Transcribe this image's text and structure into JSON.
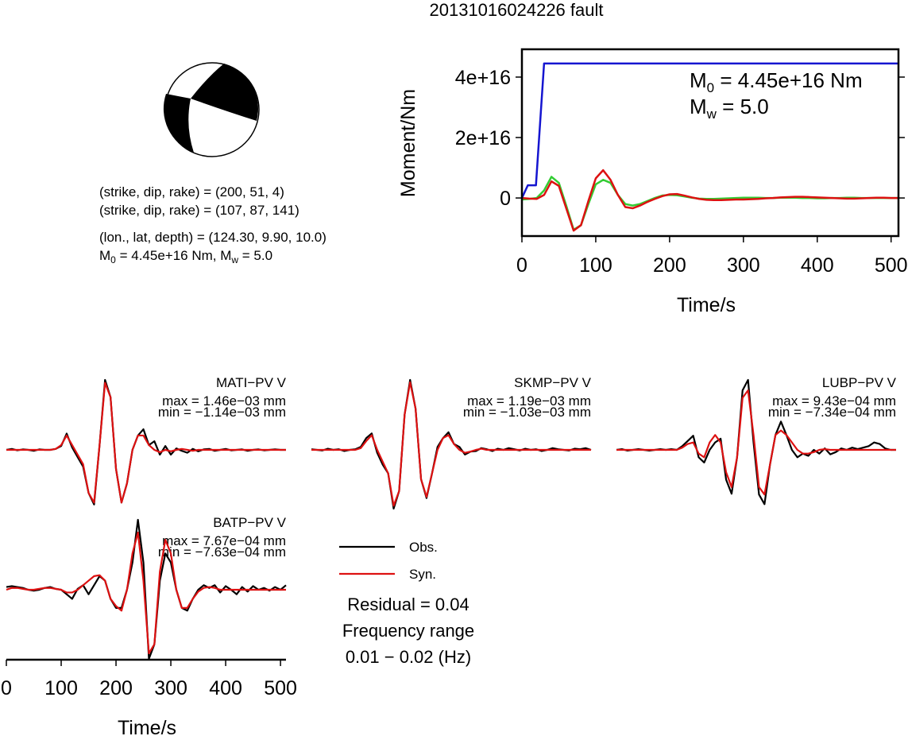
{
  "title": "20131016024226 fault",
  "mechanism": {
    "lines": [
      "(strike, dip, rake) = (200, 51, 4)",
      "(strike, dip, rake) = (107, 87, 141)",
      "(lon., lat, depth) = (124.30, 9.90, 10.0)"
    ],
    "moment_line": [
      "M",
      "0",
      " = 4.45e+16 Nm, M",
      "w",
      " = 5.0"
    ]
  },
  "chart_data": [
    {
      "type": "line",
      "xlabel": "Time/s",
      "ylabel": "Moment/Nm",
      "xlim": [
        0,
        510
      ],
      "ylim": [
        -1.26e+16,
        4.92e+16
      ],
      "xticks": [
        0,
        100,
        200,
        300,
        400,
        500
      ],
      "yticks": [
        0,
        {
          "value": 2e+16,
          "label": "2e+16"
        },
        {
          "value": 4e+16,
          "label": "4e+16"
        }
      ],
      "x": [
        0,
        10,
        20,
        30,
        40,
        50,
        60,
        70,
        80,
        90,
        100,
        110,
        120,
        130,
        140,
        150,
        160,
        170,
        180,
        190,
        200,
        210,
        220,
        230,
        240,
        250,
        260,
        270,
        280,
        290,
        300,
        310,
        320,
        330,
        340,
        350,
        360,
        370,
        380,
        390,
        400,
        410,
        420,
        430,
        440,
        450,
        460,
        470,
        480,
        490,
        500,
        510
      ],
      "series": [
        {
          "color": "#1515d0",
          "x": [
            0,
            8,
            19,
            30,
            510
          ],
          "values": [
            0,
            4200000000000000.0,
            4200000000000000.0,
            4.45e+16,
            4.45e+16
          ]
        },
        {
          "color": "#dd1111",
          "values": [
            0,
            -200000000000000.0,
            -300000000000000.0,
            1000000000000000.0,
            5500000000000000.0,
            4000000000000000.0,
            -3400000000000000.0,
            -1.08e+16,
            -9000000000000000.0,
            -1000000000000000.0,
            6500000000000000.0,
            9200000000000000.0,
            6000000000000000.0,
            1000000000000000.0,
            -3000000000000000.0,
            -3400000000000000.0,
            -2500000000000000.0,
            -1300000000000000.0,
            -300000000000000.0,
            600000000000000.0,
            1200000000000000.0,
            1300000000000000.0,
            800000000000000.0,
            200000000000000.0,
            -300000000000000.0,
            -600000000000000.0,
            -700000000000000.0,
            -700000000000000.0,
            -600000000000000.0,
            -500000000000000.0,
            -500000000000000.0,
            -400000000000000.0,
            -300000000000000.0,
            -100000000000000.0,
            0,
            200000000000000.0,
            300000000000000.0,
            400000000000000.0,
            400000000000000.0,
            300000000000000.0,
            200000000000000.0,
            100000000000000.0,
            0,
            -100000000000000.0,
            -200000000000000.0,
            -200000000000000.0,
            -100000000000000.0,
            0,
            100000000000000.0,
            100000000000000.0,
            0,
            0
          ]
        },
        {
          "color": "#33cc33",
          "values": [
            -500000000000000.0,
            -300000000000000.0,
            0,
            2500000000000000.0,
            7000000000000000.0,
            5000000000000000.0,
            -2500000000000000.0,
            -1.05e+16,
            -9000000000000000.0,
            -2000000000000000.0,
            4500000000000000.0,
            6000000000000000.0,
            5000000000000000.0,
            1000000000000000.0,
            -2000000000000000.0,
            -2500000000000000.0,
            -2000000000000000.0,
            -1000000000000000.0,
            0,
            800000000000000.0,
            1000000000000000.0,
            900000000000000.0,
            500000000000000.0,
            100000000000000.0,
            -200000000000000.0,
            -300000000000000.0,
            -300000000000000.0,
            -200000000000000.0,
            -100000000000000.0,
            0,
            100000000000000.0,
            100000000000000.0,
            100000000000000.0,
            0,
            0,
            100000000000000.0,
            100000000000000.0,
            100000000000000.0,
            0,
            0,
            -100000000000000.0,
            -100000000000000.0,
            0,
            0,
            100000000000000.0,
            100000000000000.0,
            0,
            0,
            0,
            0,
            0,
            0
          ]
        }
      ],
      "annotations": [
        [
          "M",
          "0",
          " = 4.45e+16 Nm"
        ],
        [
          "M",
          "w",
          " = 5.0"
        ]
      ]
    },
    {
      "type": "line",
      "xlabel": "Time/s",
      "xlim": [
        0,
        510
      ],
      "xticks": [
        0,
        100,
        200,
        300,
        400,
        500
      ],
      "x": [
        0,
        10,
        20,
        30,
        40,
        50,
        60,
        70,
        80,
        90,
        100,
        110,
        120,
        130,
        140,
        150,
        160,
        170,
        180,
        190,
        200,
        210,
        220,
        230,
        240,
        250,
        260,
        270,
        280,
        290,
        300,
        310,
        320,
        330,
        340,
        350,
        360,
        370,
        380,
        390,
        400,
        410,
        420,
        430,
        440,
        450,
        460,
        470,
        480,
        490,
        500,
        510
      ],
      "series": [
        {
          "name": "Obs.",
          "color": "#000000"
        },
        {
          "name": "Syn.",
          "color": "#dd1111"
        }
      ],
      "panels": [
        {
          "label": "MATI−PV V",
          "max": "max = 1.46e−03 mm",
          "min": "min = −1.14e−03 mm",
          "series": [
            {
              "values": [
                0,
                2e-05,
                -1e-05,
                1e-05,
                0,
                -2e-05,
                1e-05,
                0,
                0,
                2e-05,
                8e-05,
                0.00034,
                5e-05,
                -0.00015,
                -0.00035,
                -0.0009,
                -0.00114,
                0.0001,
                0.00146,
                0.0011,
                -0.0004,
                -0.0011,
                -0.0007,
                0,
                0.0003,
                0.00043,
                0.0001,
                0.00018,
                -0.0001,
                8e-05,
                -0.0001,
                3e-05,
                -2e-05,
                -6e-05,
                2e-05,
                -3e-05,
                1e-05,
                2e-05,
                -2e-05,
                0,
                2e-05,
                -1e-05,
                0,
                1e-05,
                -2e-05,
                0,
                1e-05,
                -1e-05,
                0,
                1e-05,
                0,
                0
              ]
            },
            {
              "values": [
                0,
                0,
                0,
                0,
                0,
                0,
                0,
                0,
                0,
                2e-05,
                0.0001,
                0.0003,
                0.0001,
                -0.0001,
                -0.0003,
                -0.0009,
                -0.0011,
                0.0001,
                0.0014,
                0.0011,
                -0.0004,
                -0.0011,
                -0.0007,
                0,
                0.0003,
                0.0003,
                0.0001,
                0,
                -5e-05,
                0,
                -3e-05,
                0,
                2e-05,
                0,
                -2e-05,
                0,
                0,
                0,
                0,
                0,
                0,
                0,
                0,
                0,
                0,
                0,
                0,
                0,
                0,
                0,
                0,
                0
              ]
            }
          ]
        },
        {
          "label": "SKMP−PV V",
          "max": "max = 1.19e−03 mm",
          "min": "min = −1.03e−03 mm",
          "series": [
            {
              "values": [
                1e-05,
                0,
                -1e-05,
                2e-05,
                0,
                1e-05,
                -2e-05,
                0,
                1e-05,
                5e-05,
                0.0002,
                0.00028,
                -5e-05,
                -0.00025,
                -0.0004,
                -0.001,
                -0.0007,
                0.0006,
                0.00119,
                0.0007,
                -0.0005,
                -0.00082,
                -0.0004,
                5e-05,
                0.0002,
                0.0003,
                0.0001,
                5e-05,
                -8e-05,
                -3e-05,
                -2e-05,
                3e-05,
                1e-05,
                -2e-05,
                2e-05,
                0,
                3e-05,
                1e-05,
                -1e-05,
                2e-05,
                0,
                1e-05,
                -2e-05,
                0,
                3e-05,
                1e-05,
                0,
                -1e-05,
                2e-05,
                1e-05,
                3e-05,
                0
              ]
            },
            {
              "values": [
                0,
                0,
                0,
                0,
                0,
                0,
                0,
                0,
                0,
                3e-05,
                0.00015,
                0.00025,
                0,
                -0.0002,
                -0.0004,
                -0.00095,
                -0.0007,
                0.0006,
                0.00115,
                0.0007,
                -0.0005,
                -0.0008,
                -0.0004,
                0,
                0.0002,
                0.00025,
                0.0001,
                0,
                -5e-05,
                -3e-05,
                0,
                2e-05,
                0,
                0,
                0,
                0,
                0,
                0,
                0,
                0,
                0,
                0,
                0,
                0,
                0,
                0,
                0,
                0,
                0,
                0,
                0,
                0
              ]
            }
          ]
        },
        {
          "label": "LUBP−PV V",
          "max": "max = 9.43e−04 mm",
          "min": "min = −7.34e−04 mm",
          "series": [
            {
              "values": [
                0,
                1e-05,
                -1e-05,
                0,
                1e-05,
                0,
                -1e-05,
                0,
                1e-05,
                0,
                1e-05,
                0,
                5e-05,
                0.00012,
                0.00019,
                -0.0001,
                -0.00017,
                0,
                0.0001,
                0.00015,
                -0.0004,
                -0.00059,
                -0.0001,
                0.0008,
                0.00094,
                0.0001,
                -0.0006,
                -0.00073,
                -0.0002,
                0.0002,
                0.00038,
                0.0002,
                0,
                -0.0001,
                -5e-05,
                -8e-05,
                0,
                -5e-05,
                2e-05,
                -6e-05,
                -3e-05,
                2e-05,
                0,
                3e-05,
                1e-05,
                3e-05,
                5e-05,
                0.0001,
                8e-05,
                2e-05,
                0,
                0
              ]
            },
            {
              "values": [
                0,
                0,
                0,
                0,
                0,
                0,
                0,
                0,
                0,
                0,
                0,
                0,
                3e-05,
                8e-05,
                0.0001,
                -5e-05,
                -0.0001,
                0.0001,
                0.0002,
                0.0001,
                -0.0003,
                -0.0005,
                -0.0001,
                0.0007,
                0.0008,
                0.0002,
                -0.0005,
                -0.0006,
                -0.0002,
                0.0002,
                0.00026,
                0.0002,
                0.0001,
                0,
                -5e-05,
                -5e-05,
                -3e-05,
                0,
                1e-05,
                0,
                0,
                0,
                0,
                0,
                0,
                0,
                0,
                0,
                0,
                0,
                0,
                0
              ]
            }
          ]
        },
        {
          "label": "BATP−PV V",
          "max": "max = 7.67e−04 mm",
          "min": "min = −7.63e−04 mm",
          "series": [
            {
              "values": [
                3e-05,
                4e-05,
                3e-05,
                2e-05,
                0,
                -1e-05,
                0,
                2e-05,
                3e-05,
                1e-05,
                0,
                -5e-05,
                -0.0001,
                1e-05,
                5e-05,
                -5e-05,
                5e-05,
                0.00015,
                0.0001,
                -0.0001,
                -0.0002,
                -0.0002,
                0,
                0.0003,
                0.00077,
                0.0003,
                -0.00076,
                -0.0006,
                0.0001,
                0.0004,
                0.0003,
                0,
                -0.0002,
                -0.00023,
                -0.0001,
                0,
                5e-05,
                2e-05,
                5e-05,
                -3e-05,
                4e-05,
                0,
                -5e-05,
                3e-05,
                -2e-05,
                4e-05,
                0,
                2e-05,
                -1e-05,
                3e-05,
                0,
                5e-05
              ]
            },
            {
              "values": [
                0,
                2e-05,
                2e-05,
                1e-05,
                0,
                0,
                1e-05,
                2e-05,
                2e-05,
                1e-05,
                0,
                -3e-05,
                -3e-05,
                0,
                5e-05,
                0.0001,
                0.00015,
                0.00016,
                0.0001,
                -0.0001,
                -0.00018,
                -0.00023,
                0,
                0.0004,
                0.00063,
                0.0001,
                -0.0007,
                -0.0006,
                0.0002,
                0.00055,
                0.0004,
                0,
                -0.0002,
                -0.0002,
                -0.0001,
                -2e-05,
                2e-05,
                3e-05,
                2e-05,
                0,
                0,
                0,
                0,
                0,
                0,
                0,
                0,
                0,
                0,
                0,
                0,
                0
              ]
            }
          ]
        }
      ],
      "annotations": [
        "Residual = 0.04",
        "Frequency range",
        "0.01 − 0.02 (Hz)"
      ]
    }
  ]
}
